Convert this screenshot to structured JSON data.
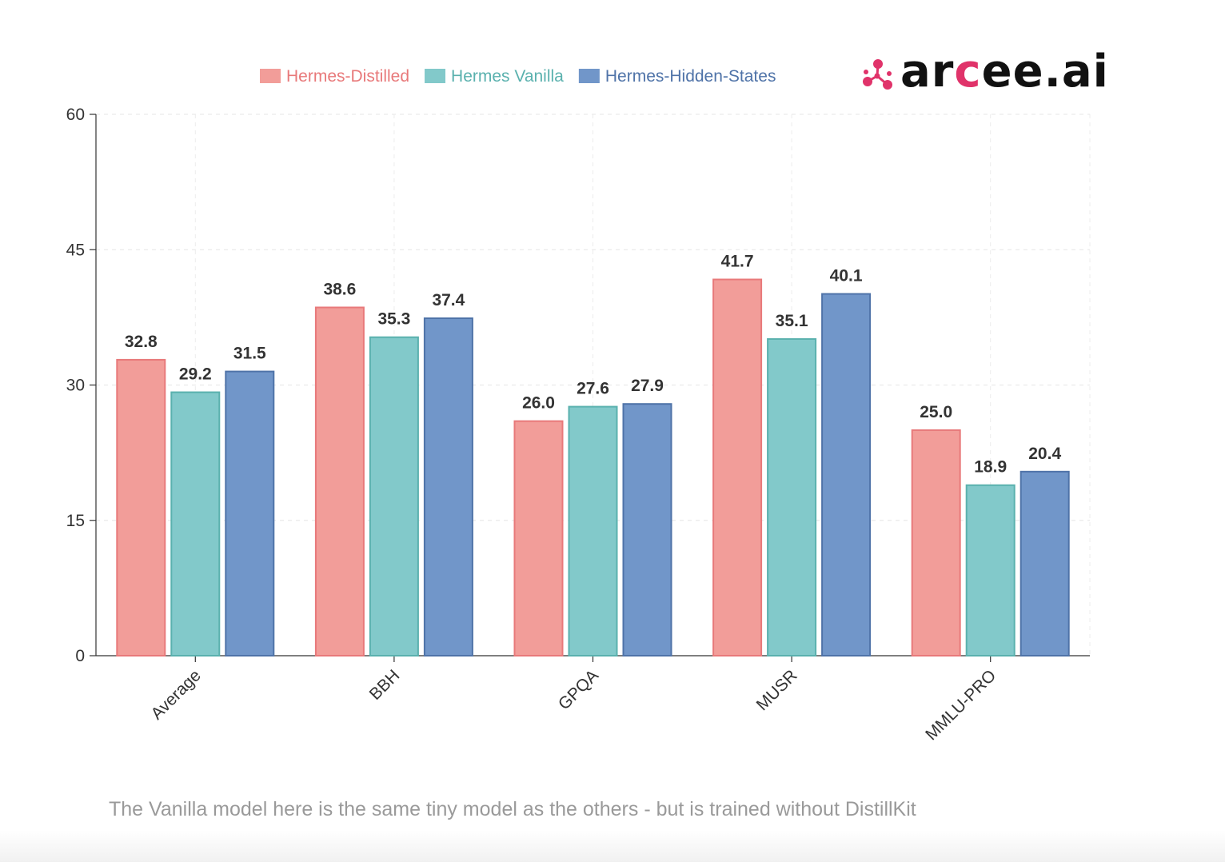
{
  "chart_data": {
    "type": "bar",
    "title": "",
    "xlabel": "",
    "ylabel": "",
    "categories": [
      "Average",
      "BBH",
      "GPQA",
      "MUSR",
      "MMLU-PRO"
    ],
    "series": [
      {
        "name": "Hermes-Distilled",
        "values": [
          32.8,
          38.6,
          26.0,
          41.7,
          25.0
        ],
        "color": "#f29d99",
        "stroke": "#e8797a"
      },
      {
        "name": "Hermes Vanilla",
        "values": [
          29.2,
          35.3,
          27.6,
          35.1,
          18.9
        ],
        "color": "#82c9ca",
        "stroke": "#5ab1ae"
      },
      {
        "name": "Hermes-Hidden-States",
        "values": [
          31.5,
          37.4,
          27.9,
          40.1,
          20.4
        ],
        "color": "#7196c9",
        "stroke": "#4f73a8"
      }
    ],
    "yticks": [
      "0",
      "15",
      "30",
      "45",
      "60"
    ],
    "ylim": [
      0,
      60
    ],
    "grid": true,
    "legend_position": "top"
  },
  "logo": {
    "text_dark_1": "ar",
    "text_accent": "c",
    "text_dark_2": "ee.ai",
    "accent_color": "#e0336a"
  },
  "caption": "The Vanilla model here is the same tiny model as the others - but is trained without DistillKit"
}
